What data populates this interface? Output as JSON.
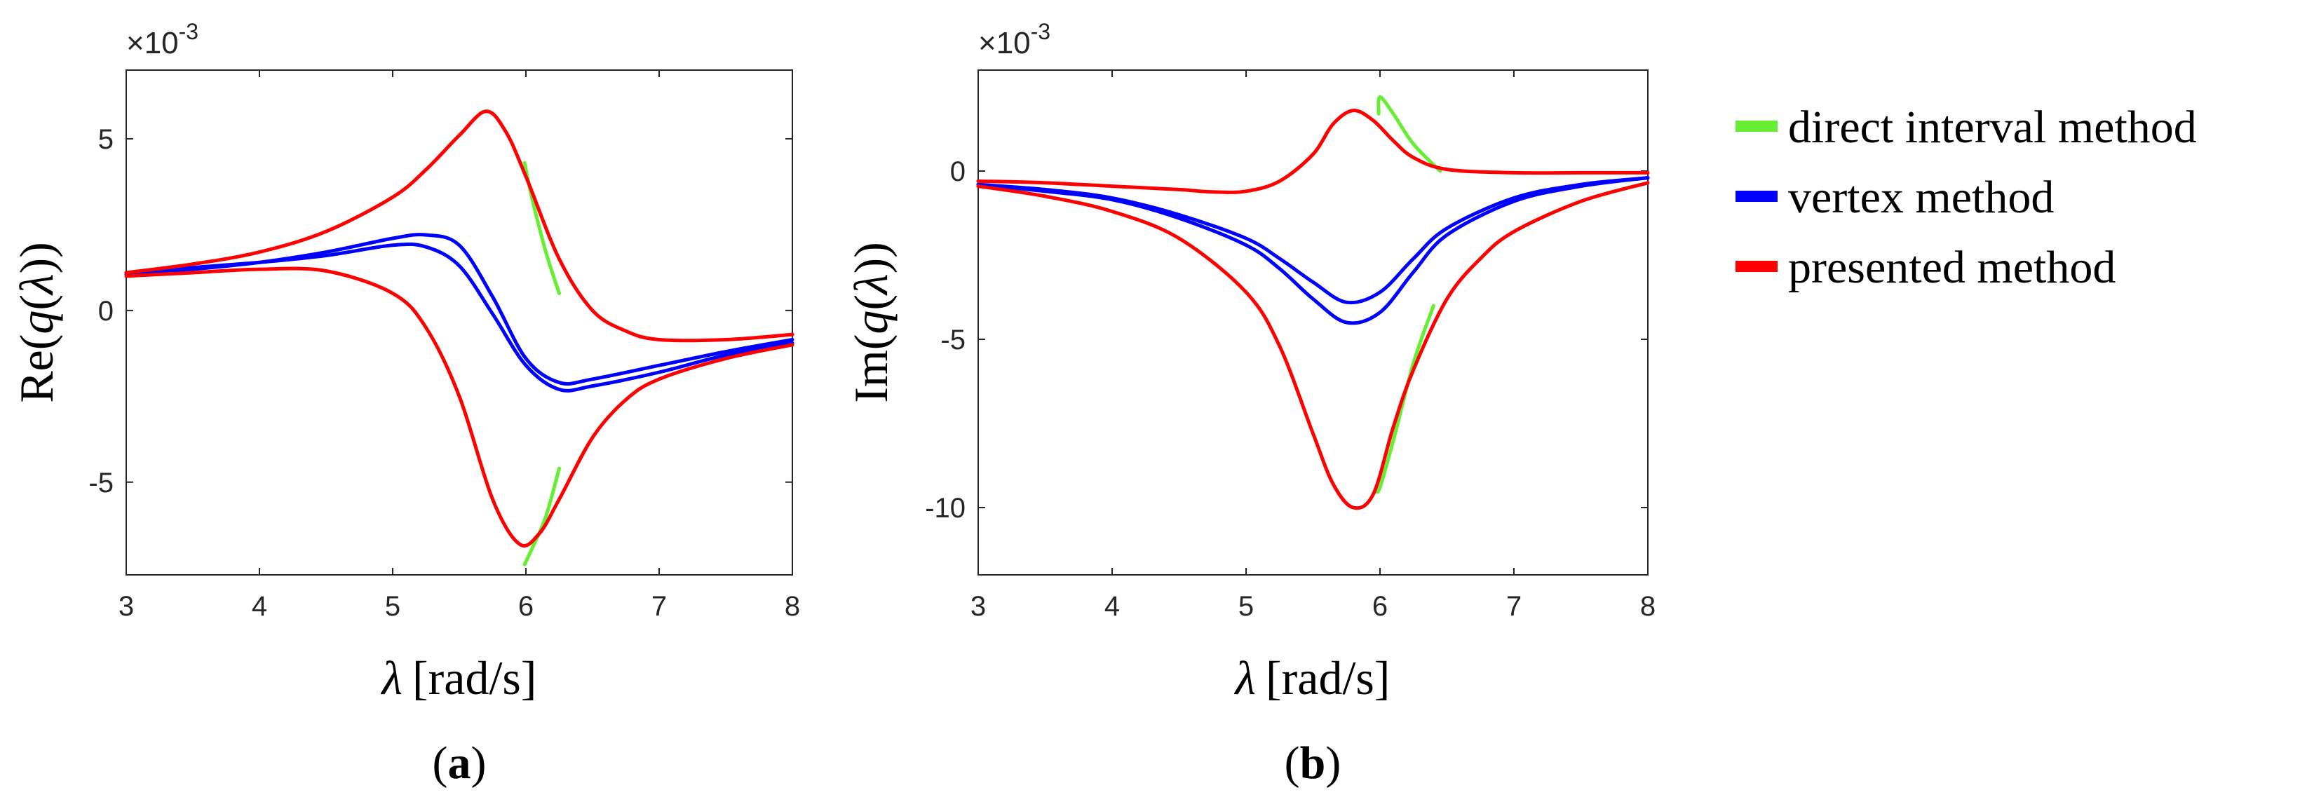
{
  "legend": [
    {
      "label": "direct interval method",
      "color": "#66ee33"
    },
    {
      "label": "vertex method",
      "color": "#0000ff"
    },
    {
      "label": "presented method",
      "color": "#ff0000"
    }
  ],
  "chart_data": [
    {
      "type": "line",
      "panel_label": "(a)",
      "panel_label_bold": "a",
      "xlabel_symbol": "λ",
      "xlabel_unit": "[rad/s]",
      "ylabel_prefix": "Re(",
      "ylabel_fn": "q",
      "ylabel_mid": "(",
      "ylabel_symbol": "λ",
      "ylabel_suffix": "))",
      "multiplier_prefix": "×10",
      "multiplier_exponent": "-3",
      "xlim": [
        3,
        8
      ],
      "ylim": [
        -7.7,
        7
      ],
      "xticks": [
        3,
        4,
        5,
        6,
        7,
        8
      ],
      "yticks": [
        -5,
        0,
        5
      ],
      "grid": false,
      "series": [
        {
          "name": "direct interval method",
          "color": "#66ee33",
          "x": [
            5.99,
            6.05,
            6.15,
            6.25
          ],
          "y": [
            4.3,
            3.2,
            1.7,
            0.5
          ]
        },
        {
          "name": "direct interval method",
          "color": "#66ee33",
          "x": [
            5.99,
            6.05,
            6.15,
            6.25
          ],
          "y": [
            -7.4,
            -6.9,
            -6.0,
            -4.6
          ]
        },
        {
          "name": "vertex method",
          "color": "#0000ff",
          "x": [
            3,
            3.5,
            4,
            4.5,
            5,
            5.25,
            5.5,
            5.75,
            6,
            6.25,
            6.5,
            7,
            7.5,
            8
          ],
          "y": [
            1.05,
            1.2,
            1.4,
            1.7,
            2.1,
            2.2,
            1.9,
            0.4,
            -1.4,
            -2.1,
            -2.0,
            -1.6,
            -1.2,
            -0.85
          ]
        },
        {
          "name": "vertex method",
          "color": "#0000ff",
          "x": [
            3,
            3.5,
            4,
            4.5,
            5,
            5.25,
            5.5,
            5.75,
            6,
            6.25,
            6.5,
            7,
            7.5,
            8
          ],
          "y": [
            1.1,
            1.25,
            1.4,
            1.6,
            1.9,
            1.85,
            1.3,
            -0.1,
            -1.6,
            -2.3,
            -2.2,
            -1.8,
            -1.3,
            -0.95
          ]
        },
        {
          "name": "presented method",
          "color": "#ff0000",
          "x": [
            3,
            3.5,
            4,
            4.5,
            5,
            5.25,
            5.5,
            5.7,
            5.85,
            6,
            6.25,
            6.5,
            6.75,
            7,
            7.5,
            8
          ],
          "y": [
            1.1,
            1.35,
            1.7,
            2.3,
            3.3,
            4.1,
            5.1,
            5.8,
            5.2,
            3.9,
            1.5,
            0.0,
            -0.6,
            -0.85,
            -0.85,
            -0.7
          ]
        },
        {
          "name": "presented method",
          "color": "#ff0000",
          "x": [
            3,
            3.5,
            4,
            4.5,
            5,
            5.25,
            5.5,
            5.75,
            5.95,
            6.1,
            6.25,
            6.5,
            6.75,
            7,
            7.5,
            8
          ],
          "y": [
            1.0,
            1.1,
            1.2,
            1.15,
            0.5,
            -0.5,
            -2.5,
            -5.5,
            -6.8,
            -6.5,
            -5.5,
            -3.7,
            -2.6,
            -2.0,
            -1.4,
            -1.0
          ]
        }
      ]
    },
    {
      "type": "line",
      "panel_label": "(b)",
      "panel_label_bold": "b",
      "xlabel_symbol": "λ",
      "xlabel_unit": "[rad/s]",
      "ylabel_prefix": "Im(",
      "ylabel_fn": "q",
      "ylabel_mid": "(",
      "ylabel_symbol": "λ",
      "ylabel_suffix": "))",
      "multiplier_prefix": "×10",
      "multiplier_exponent": "-3",
      "xlim": [
        3,
        8
      ],
      "ylim": [
        -12,
        3
      ],
      "xticks": [
        3,
        4,
        5,
        6,
        7,
        8
      ],
      "yticks": [
        -10,
        -5,
        0
      ],
      "grid": false,
      "series": [
        {
          "name": "direct interval method",
          "color": "#66ee33",
          "x": [
            5.99,
            6.0,
            6.1,
            6.25,
            6.45
          ],
          "y": [
            1.7,
            2.2,
            1.7,
            0.8,
            0.0
          ]
        },
        {
          "name": "direct interval method",
          "color": "#66ee33",
          "x": [
            5.97,
            6.0,
            6.1,
            6.25,
            6.4
          ],
          "y": [
            -9.5,
            -9.4,
            -8.0,
            -5.7,
            -4.0
          ]
        },
        {
          "name": "vertex method",
          "color": "#0000ff",
          "x": [
            3,
            3.5,
            4,
            4.5,
            5,
            5.25,
            5.5,
            5.75,
            6,
            6.25,
            6.5,
            7,
            7.5,
            8
          ],
          "y": [
            -0.4,
            -0.55,
            -0.8,
            -1.3,
            -2.0,
            -2.6,
            -3.3,
            -3.9,
            -3.6,
            -2.6,
            -1.7,
            -0.8,
            -0.4,
            -0.2
          ]
        },
        {
          "name": "vertex method",
          "color": "#0000ff",
          "x": [
            3,
            3.5,
            4,
            4.5,
            5,
            5.25,
            5.5,
            5.75,
            6,
            6.25,
            6.5,
            7,
            7.5,
            8
          ],
          "y": [
            -0.4,
            -0.6,
            -0.85,
            -1.4,
            -2.2,
            -2.9,
            -3.8,
            -4.5,
            -4.2,
            -3.0,
            -1.9,
            -0.9,
            -0.45,
            -0.2
          ]
        },
        {
          "name": "presented method",
          "color": "#ff0000",
          "x": [
            3,
            3.5,
            4,
            4.5,
            4.75,
            5,
            5.25,
            5.5,
            5.65,
            5.8,
            5.95,
            6.1,
            6.25,
            6.5,
            7,
            7.5,
            8
          ],
          "y": [
            -0.3,
            -0.35,
            -0.45,
            -0.55,
            -0.62,
            -0.6,
            -0.3,
            0.5,
            1.4,
            1.8,
            1.5,
            0.9,
            0.4,
            0.05,
            -0.05,
            -0.05,
            -0.05
          ]
        },
        {
          "name": "presented method",
          "color": "#ff0000",
          "x": [
            3,
            3.5,
            4,
            4.5,
            5,
            5.25,
            5.5,
            5.65,
            5.8,
            5.95,
            6.1,
            6.25,
            6.5,
            6.75,
            7,
            7.5,
            8
          ],
          "y": [
            -0.45,
            -0.75,
            -1.2,
            -2.0,
            -3.6,
            -5.2,
            -7.8,
            -9.3,
            -10.0,
            -9.6,
            -7.6,
            -5.9,
            -3.8,
            -2.6,
            -1.8,
            -0.9,
            -0.35
          ]
        }
      ]
    }
  ]
}
